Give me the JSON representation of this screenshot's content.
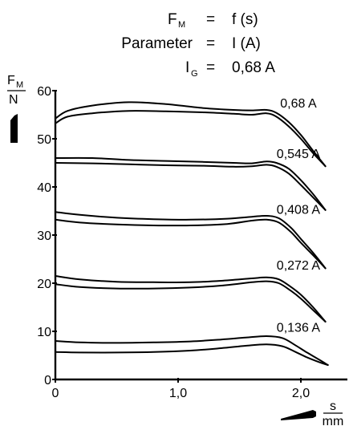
{
  "header": {
    "line1": {
      "lhs_main": "F",
      "lhs_sub": "M",
      "eq": "=",
      "rhs": "f (s)"
    },
    "line2": {
      "lhs_main": "Parameter",
      "eq": "=",
      "rhs": "I (A)"
    },
    "line3": {
      "lhs_main": "I",
      "lhs_sub": "G",
      "eq": "=",
      "rhs": "0,68 A"
    }
  },
  "chart_data": {
    "type": "line",
    "title": "",
    "ylabel_num": "F",
    "ylabel_num_sub": "M",
    "ylabel_den": "N",
    "xlabel_num": "s",
    "xlabel_den": "mm",
    "xlim": [
      0,
      2.6
    ],
    "ylim": [
      0,
      60
    ],
    "x_ticks": [
      {
        "v": 0,
        "label": "0"
      },
      {
        "v": 1.0,
        "label": "1,0"
      },
      {
        "v": 2.0,
        "label": "2,0"
      }
    ],
    "y_ticks": [
      {
        "v": 0,
        "label": "0"
      },
      {
        "v": 10,
        "label": "10"
      },
      {
        "v": 20,
        "label": "20"
      },
      {
        "v": 30,
        "label": "30"
      },
      {
        "v": 40,
        "label": "40"
      },
      {
        "v": 50,
        "label": "50"
      },
      {
        "v": 60,
        "label": "60"
      }
    ],
    "grid": false,
    "series": [
      {
        "name": "0,68 A",
        "label_at": [
          1.98,
          56.5
        ],
        "upper": [
          [
            0,
            54.2
          ],
          [
            0.1,
            55.8
          ],
          [
            0.3,
            56.9
          ],
          [
            0.6,
            57.6
          ],
          [
            0.9,
            57.2
          ],
          [
            1.2,
            56.4
          ],
          [
            1.45,
            56.0
          ],
          [
            1.6,
            55.9
          ],
          [
            1.72,
            56.0
          ],
          [
            1.8,
            55.4
          ],
          [
            1.9,
            53.5
          ],
          [
            2.0,
            50.8
          ],
          [
            2.1,
            47.5
          ],
          [
            2.2,
            44.3
          ]
        ],
        "lower": [
          [
            0,
            53.2
          ],
          [
            0.1,
            54.6
          ],
          [
            0.3,
            55.3
          ],
          [
            0.6,
            55.8
          ],
          [
            0.9,
            55.7
          ],
          [
            1.2,
            55.5
          ],
          [
            1.45,
            55.2
          ],
          [
            1.6,
            55.0
          ],
          [
            1.72,
            55.3
          ],
          [
            1.8,
            54.6
          ],
          [
            1.9,
            52.6
          ],
          [
            2.0,
            50.0
          ],
          [
            2.1,
            47.0
          ],
          [
            2.2,
            44.3
          ]
        ]
      },
      {
        "name": "0,545 A",
        "label_at": [
          1.98,
          46.0
        ],
        "upper": [
          [
            0,
            46.0
          ],
          [
            0.3,
            46.0
          ],
          [
            0.6,
            45.6
          ],
          [
            0.9,
            45.4
          ],
          [
            1.2,
            45.2
          ],
          [
            1.45,
            45.0
          ],
          [
            1.6,
            44.9
          ],
          [
            1.72,
            45.3
          ],
          [
            1.8,
            45.0
          ],
          [
            1.9,
            43.8
          ],
          [
            2.0,
            41.4
          ],
          [
            2.1,
            38.5
          ],
          [
            2.2,
            35.2
          ]
        ],
        "lower": [
          [
            0,
            45.0
          ],
          [
            0.3,
            44.9
          ],
          [
            0.6,
            44.7
          ],
          [
            0.9,
            44.5
          ],
          [
            1.2,
            44.4
          ],
          [
            1.45,
            44.2
          ],
          [
            1.6,
            44.3
          ],
          [
            1.72,
            44.6
          ],
          [
            1.8,
            44.2
          ],
          [
            1.9,
            42.8
          ],
          [
            2.0,
            40.4
          ],
          [
            2.1,
            37.8
          ],
          [
            2.2,
            35.2
          ]
        ]
      },
      {
        "name": "0,408 A",
        "label_at": [
          1.98,
          34.4
        ],
        "upper": [
          [
            0,
            34.8
          ],
          [
            0.2,
            34.2
          ],
          [
            0.5,
            33.6
          ],
          [
            0.8,
            33.3
          ],
          [
            1.1,
            33.2
          ],
          [
            1.4,
            33.4
          ],
          [
            1.6,
            33.8
          ],
          [
            1.72,
            34.0
          ],
          [
            1.82,
            33.5
          ],
          [
            1.92,
            31.5
          ],
          [
            2.0,
            29.2
          ],
          [
            2.1,
            26.3
          ],
          [
            2.2,
            23.1
          ]
        ],
        "lower": [
          [
            0,
            33.2
          ],
          [
            0.2,
            32.6
          ],
          [
            0.5,
            32.2
          ],
          [
            0.8,
            32.0
          ],
          [
            1.1,
            32.0
          ],
          [
            1.4,
            32.3
          ],
          [
            1.6,
            33.0
          ],
          [
            1.72,
            33.2
          ],
          [
            1.82,
            32.6
          ],
          [
            1.92,
            30.6
          ],
          [
            2.0,
            28.4
          ],
          [
            2.1,
            25.8
          ],
          [
            2.2,
            23.1
          ]
        ]
      },
      {
        "name": "0,272 A",
        "label_at": [
          1.98,
          22.8
        ],
        "upper": [
          [
            0,
            21.5
          ],
          [
            0.2,
            20.8
          ],
          [
            0.5,
            20.3
          ],
          [
            0.8,
            20.2
          ],
          [
            1.1,
            20.2
          ],
          [
            1.35,
            20.5
          ],
          [
            1.6,
            21.0
          ],
          [
            1.72,
            21.2
          ],
          [
            1.82,
            20.8
          ],
          [
            1.92,
            19.2
          ],
          [
            2.0,
            17.6
          ],
          [
            2.1,
            15.0
          ],
          [
            2.2,
            12.0
          ]
        ],
        "lower": [
          [
            0,
            19.8
          ],
          [
            0.2,
            19.2
          ],
          [
            0.5,
            18.9
          ],
          [
            0.8,
            18.9
          ],
          [
            1.1,
            19.1
          ],
          [
            1.35,
            19.5
          ],
          [
            1.6,
            20.2
          ],
          [
            1.72,
            20.4
          ],
          [
            1.82,
            20.0
          ],
          [
            1.92,
            18.4
          ],
          [
            2.0,
            16.8
          ],
          [
            2.1,
            14.4
          ],
          [
            2.2,
            12.0
          ]
        ]
      },
      {
        "name": "0,136 A",
        "label_at": [
          1.98,
          9.9
        ],
        "upper": [
          [
            0,
            8.0
          ],
          [
            0.2,
            7.7
          ],
          [
            0.5,
            7.6
          ],
          [
            0.8,
            7.7
          ],
          [
            1.1,
            7.9
          ],
          [
            1.35,
            8.3
          ],
          [
            1.55,
            8.7
          ],
          [
            1.72,
            9.0
          ],
          [
            1.85,
            8.6
          ],
          [
            1.95,
            7.2
          ],
          [
            2.05,
            5.6
          ],
          [
            2.15,
            4.1
          ],
          [
            2.22,
            3.0
          ]
        ],
        "lower": [
          [
            0,
            5.7
          ],
          [
            0.2,
            5.6
          ],
          [
            0.5,
            5.6
          ],
          [
            0.8,
            5.7
          ],
          [
            1.1,
            6.0
          ],
          [
            1.35,
            6.5
          ],
          [
            1.55,
            7.0
          ],
          [
            1.72,
            7.3
          ],
          [
            1.85,
            6.9
          ],
          [
            1.95,
            5.8
          ],
          [
            2.05,
            4.6
          ],
          [
            2.15,
            3.6
          ],
          [
            2.22,
            3.0
          ]
        ]
      }
    ]
  }
}
